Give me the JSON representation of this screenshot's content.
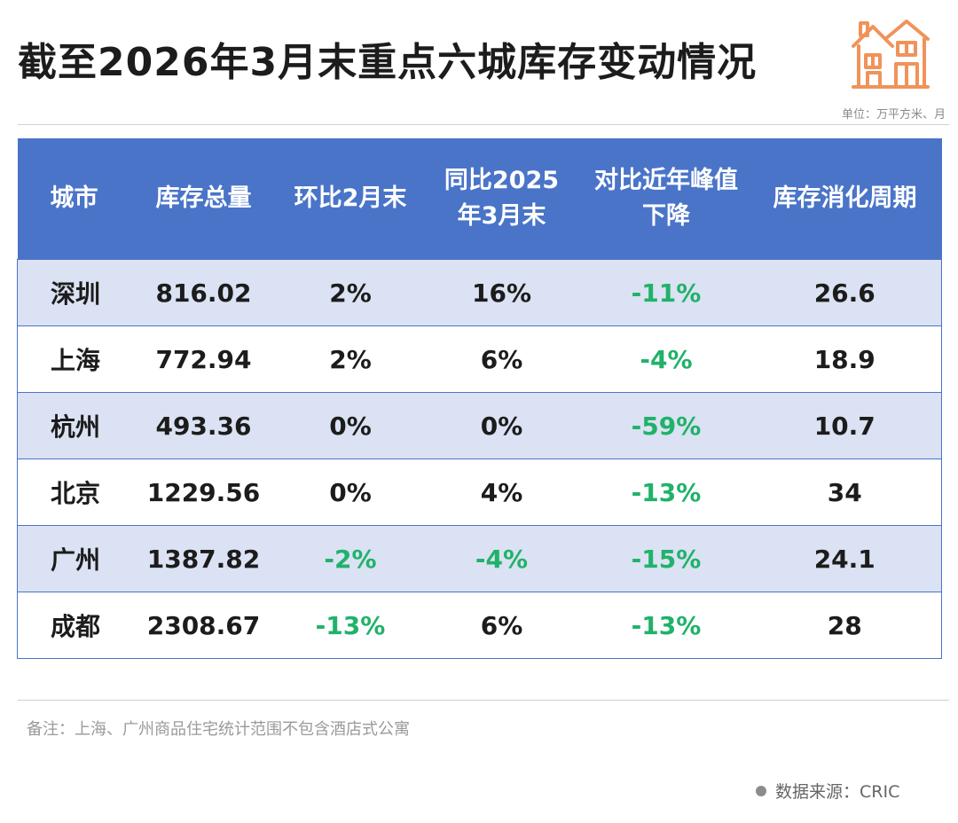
{
  "title": "截至2026年3月末重点六城库存变动情况",
  "unit": "单位：万平方米、月",
  "table": {
    "headers": {
      "city": "城市",
      "total": "库存总量",
      "mom": "环比2月末",
      "yoy_line1": "同比2025",
      "yoy_line2": "年3月末",
      "peak_line1": "对比近年峰值",
      "peak_line2": "下降",
      "cycle": "库存消化周期"
    },
    "rows": [
      {
        "city": "深圳",
        "total": "816.02",
        "mom": "2%",
        "yoy": "16%",
        "peak": "-11%",
        "cycle": "26.6"
      },
      {
        "city": "上海",
        "total": "772.94",
        "mom": "2%",
        "yoy": "6%",
        "peak": "-4%",
        "cycle": "18.9"
      },
      {
        "city": "杭州",
        "total": "493.36",
        "mom": "0%",
        "yoy": "0%",
        "peak": "-59%",
        "cycle": "10.7"
      },
      {
        "city": "北京",
        "total": "1229.56",
        "mom": "0%",
        "yoy": "4%",
        "peak": "-13%",
        "cycle": "34"
      },
      {
        "city": "广州",
        "total": "1387.82",
        "mom": "-2%",
        "yoy": "-4%",
        "peak": "-15%",
        "cycle": "24.1"
      },
      {
        "city": "成都",
        "total": "2308.67",
        "mom": "-13%",
        "yoy": "6%",
        "peak": "-13%",
        "cycle": "28"
      }
    ]
  },
  "note": "备注：上海、广州商品住宅统计范围不包含酒店式公寓",
  "source": "数据来源：CRIC",
  "colors": {
    "header_bg": "#4a74c8",
    "row_alt_bg": "#dbe2f3",
    "negative": "#20b26a",
    "icon_orange": "#f0935a"
  },
  "icons": {
    "logo": "house-icon",
    "source_bullet": "dot-icon"
  }
}
